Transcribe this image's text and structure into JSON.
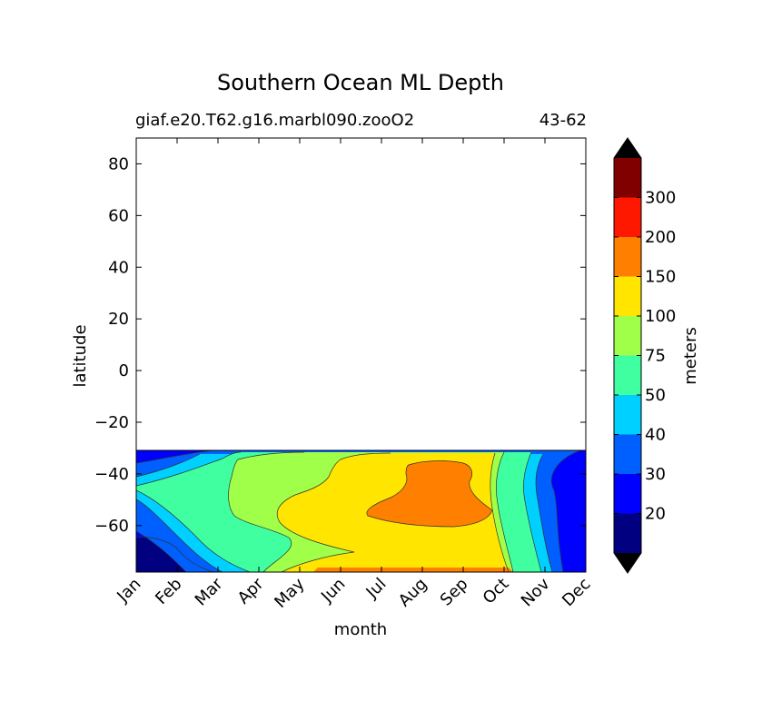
{
  "chart_data": {
    "type": "contour",
    "title": "Southern Ocean ML Depth",
    "subtitle_left": "giaf.e20.T62.g16.marbl090.zooO2",
    "subtitle_right": "43-62",
    "xlabel": "month",
    "ylabel": "latitude",
    "x_categories": [
      "Jan",
      "Feb",
      "Mar",
      "Apr",
      "May",
      "Jun",
      "Jul",
      "Aug",
      "Sep",
      "Oct",
      "Nov",
      "Dec"
    ],
    "yticks": [
      80,
      60,
      40,
      20,
      0,
      -20,
      -40,
      -60
    ],
    "ylim": [
      -78,
      90
    ],
    "data_lat_max": -32,
    "colorbar": {
      "label": "meters",
      "tick_labels": [
        "20",
        "30",
        "40",
        "50",
        "75",
        "100",
        "150",
        "200",
        "300"
      ],
      "levels": [
        10,
        20,
        30,
        40,
        50,
        75,
        100,
        150,
        200,
        300,
        400
      ],
      "colors": [
        "#000080",
        "#0000ff",
        "#0060ff",
        "#00d0ff",
        "#40ffa0",
        "#a0ff48",
        "#ffe500",
        "#ff8000",
        "#ff1800",
        "#800000"
      ],
      "extend_low_color": "#000000",
      "extend_high_color": "#000000"
    },
    "grid": false
  }
}
